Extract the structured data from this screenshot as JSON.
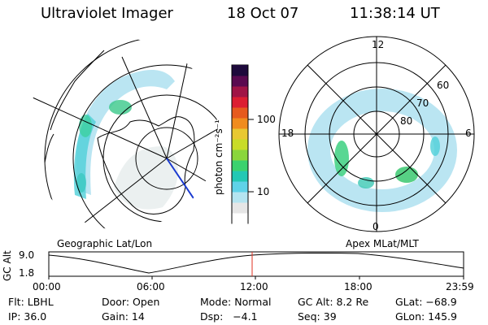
{
  "header": {
    "instrument": "Ultraviolet Imager",
    "date": "18 Oct 07",
    "time": "11:38:14 UT"
  },
  "colorbar": {
    "label": "photon cm⁻²s⁻¹",
    "ticks": [
      "100",
      "10"
    ],
    "scale": "log",
    "colors": [
      "#ffffff",
      "#e6e6e6",
      "#b4e4f0",
      "#5fd2e8",
      "#23c8b4",
      "#3cd26e",
      "#8ad63c",
      "#c8dc28",
      "#e8c832",
      "#f08c1e",
      "#e65a1e",
      "#dc1e32",
      "#a01446",
      "#5a0a50",
      "#1e0a3c"
    ]
  },
  "left_map": {
    "caption": "Geographic Lat/Lon"
  },
  "right_map": {
    "caption": "Apex MLat/MLT",
    "clock_labels": {
      "top": "12",
      "bottom": "0",
      "left": "18",
      "right": "6"
    },
    "lat_labels": [
      "60",
      "70",
      "80"
    ]
  },
  "alt_plot": {
    "ylabel": "GC Alt",
    "yticks": [
      "9.0",
      "1.8"
    ],
    "xticks": [
      "00:00",
      "06:00",
      "12:00",
      "18:00",
      "23:59"
    ],
    "marker_color": "#e03020"
  },
  "info": {
    "row1": {
      "flt": "Flt: LBHL",
      "door": "Door: Open",
      "mode": "Mode: Normal",
      "gcalt": "GC Alt: 8.2 Re",
      "glat": "GLat: −68.9"
    },
    "row2": {
      "ip": "IP: 36.0",
      "gain": "Gain: 14",
      "dsp": "Dsp:   −4.1",
      "seq": "Seq: 39",
      "glon": "GLon: 145.9"
    }
  }
}
